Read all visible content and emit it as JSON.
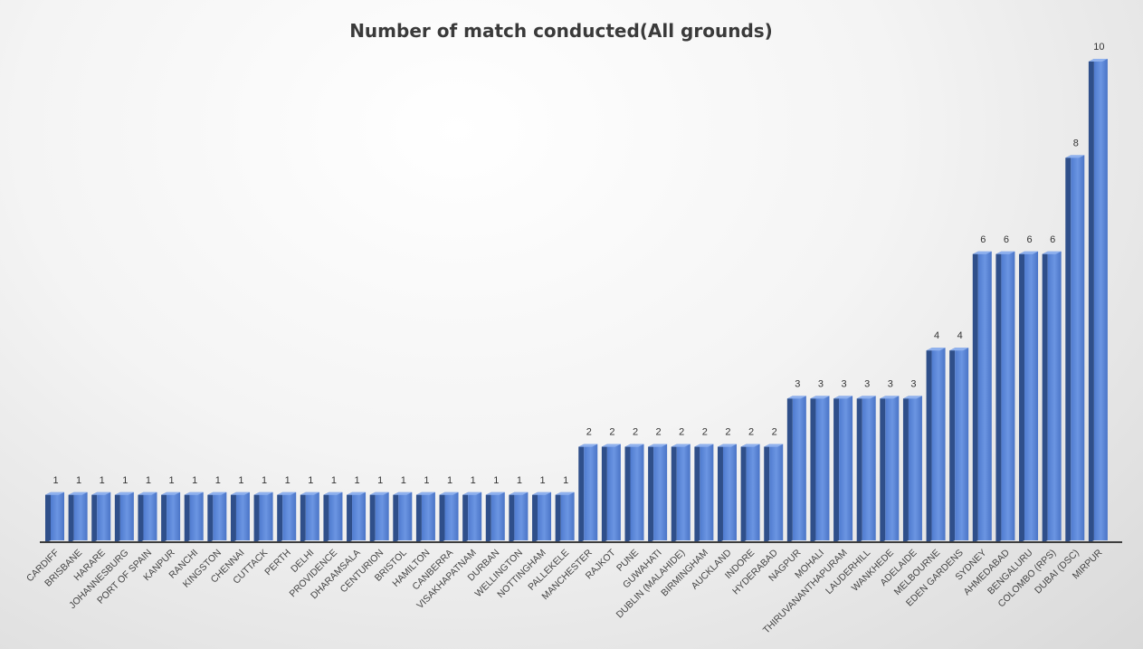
{
  "chart_data": {
    "type": "bar",
    "title": "Number of match conducted(All grounds)",
    "categories": [
      "CARDIFF",
      "BRISBANE",
      "HARARE",
      "JOHANNESBURG",
      "PORT OF SPAIN",
      "KANPUR",
      "RANCHI",
      "KINGSTON",
      "CHENNAI",
      "CUTTACK",
      "PERTH",
      "DELHI",
      "PROVIDENCE",
      "DHARAMSALA",
      "CENTURION",
      "BRISTOL",
      "HAMILTON",
      "CANBERRA",
      "VISAKHAPATNAM",
      "DURBAN",
      "WELLINGTON",
      "NOTTINGHAM",
      "PALLEKELE",
      "MANCHESTER",
      "RAJKOT",
      "PUNE",
      "GUWAHATI",
      "DUBLIN (MALAHIDE)",
      "BIRMINGHAM",
      "AUCKLAND",
      "INDORE",
      "HYDERABAD",
      "NAGPUR",
      "MOHALI",
      "THIRUVANANTHAPURAM",
      "LAUDERHILL",
      "WANKHEDE",
      "ADELAIDE",
      "MELBOURNE",
      "EDEN GARDENS",
      "SYDNEY",
      "AHMEDABAD",
      "BENGALURU",
      "COLOMBO (RPS)",
      "DUBAI (DSC)",
      "MIRPUR"
    ],
    "values": [
      1,
      1,
      1,
      1,
      1,
      1,
      1,
      1,
      1,
      1,
      1,
      1,
      1,
      1,
      1,
      1,
      1,
      1,
      1,
      1,
      1,
      1,
      1,
      2,
      2,
      2,
      2,
      2,
      2,
      2,
      2,
      2,
      3,
      3,
      3,
      3,
      3,
      3,
      4,
      4,
      6,
      6,
      6,
      6,
      8,
      10
    ],
    "ylim": [
      0,
      10
    ],
    "grid": false,
    "legend": "none",
    "colors": {
      "bar_front": "#5b86d8",
      "bar_side": "#2f4f8a",
      "bar_top": "#8fb1ee",
      "axis": "#3d3d3d"
    }
  }
}
